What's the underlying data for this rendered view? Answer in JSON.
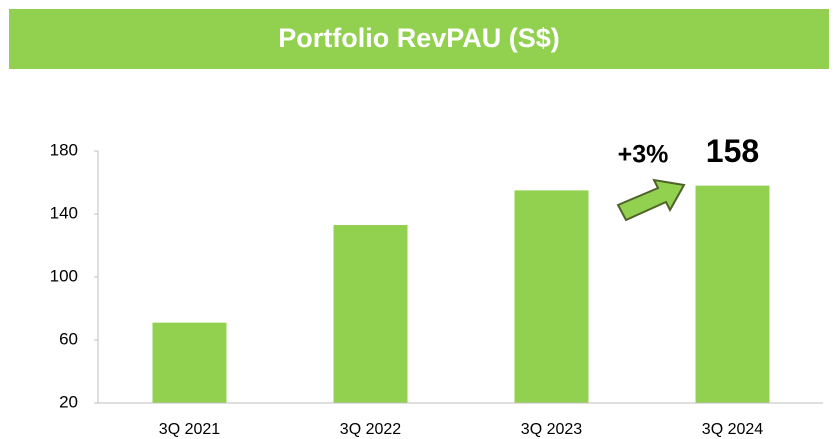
{
  "chart_data": {
    "type": "bar",
    "title": "Portfolio RevPAU (S$)",
    "categories": [
      "3Q 2021",
      "3Q 2022",
      "3Q 2023",
      "3Q 2024"
    ],
    "values": [
      71,
      133,
      155,
      158
    ],
    "color": "#92d050",
    "ylim": [
      20,
      180
    ],
    "yticks": [
      20,
      60,
      100,
      140,
      180
    ],
    "grid": false,
    "annotations": [
      {
        "text": "+3%"
      }
    ]
  }
}
